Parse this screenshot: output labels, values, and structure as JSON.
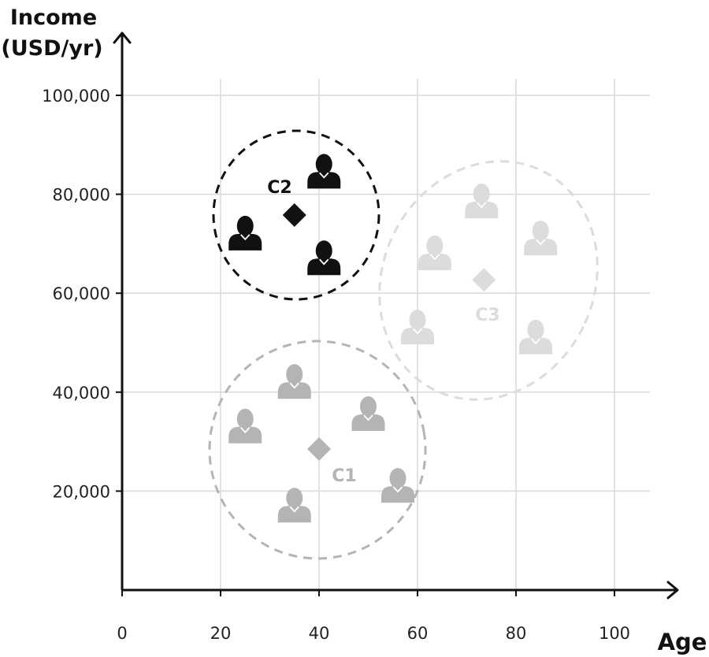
{
  "chart_data": {
    "type": "scatter",
    "x_axis": {
      "label": "Age",
      "ticks": [
        0,
        20,
        40,
        60,
        80,
        100
      ],
      "tick_labels": [
        "0",
        "20",
        "40",
        "60",
        "80",
        "100"
      ],
      "range": [
        0,
        108
      ]
    },
    "y_axis": {
      "label_line1": "Income",
      "label_line2": "(USD/yr)",
      "ticks": [
        20000,
        40000,
        60000,
        80000,
        100000
      ],
      "tick_labels": [
        "20,000",
        "40,000",
        "60,000",
        "80,000",
        "100,000"
      ],
      "range": [
        0,
        100000
      ]
    },
    "grid": true,
    "point_marker": "person-icon",
    "centroid_marker": "diamond",
    "clusters": [
      {
        "label": "C1",
        "color": "#b4b4b4",
        "boundary": "dashed-ellipse",
        "centroid": {
          "x": 40,
          "y": 28500
        },
        "points": [
          {
            "x": 25,
            "y": 33000
          },
          {
            "x": 35,
            "y": 42000
          },
          {
            "x": 50,
            "y": 35500
          },
          {
            "x": 35,
            "y": 17000
          },
          {
            "x": 56,
            "y": 21000
          }
        ]
      },
      {
        "label": "C2",
        "color": "#111111",
        "boundary": "dashed-circle",
        "centroid": {
          "x": 35,
          "y": 75800
        },
        "points": [
          {
            "x": 41,
            "y": 84500
          },
          {
            "x": 25,
            "y": 72000
          },
          {
            "x": 41,
            "y": 67000
          }
        ]
      },
      {
        "label": "C3",
        "color": "#dcdcdc",
        "boundary": "dashed-ellipse",
        "centroid": {
          "x": 73.5,
          "y": 62700
        },
        "points": [
          {
            "x": 73,
            "y": 78500
          },
          {
            "x": 63.5,
            "y": 68000
          },
          {
            "x": 85,
            "y": 71000
          },
          {
            "x": 60,
            "y": 53000
          },
          {
            "x": 84,
            "y": 51000
          }
        ]
      }
    ]
  }
}
